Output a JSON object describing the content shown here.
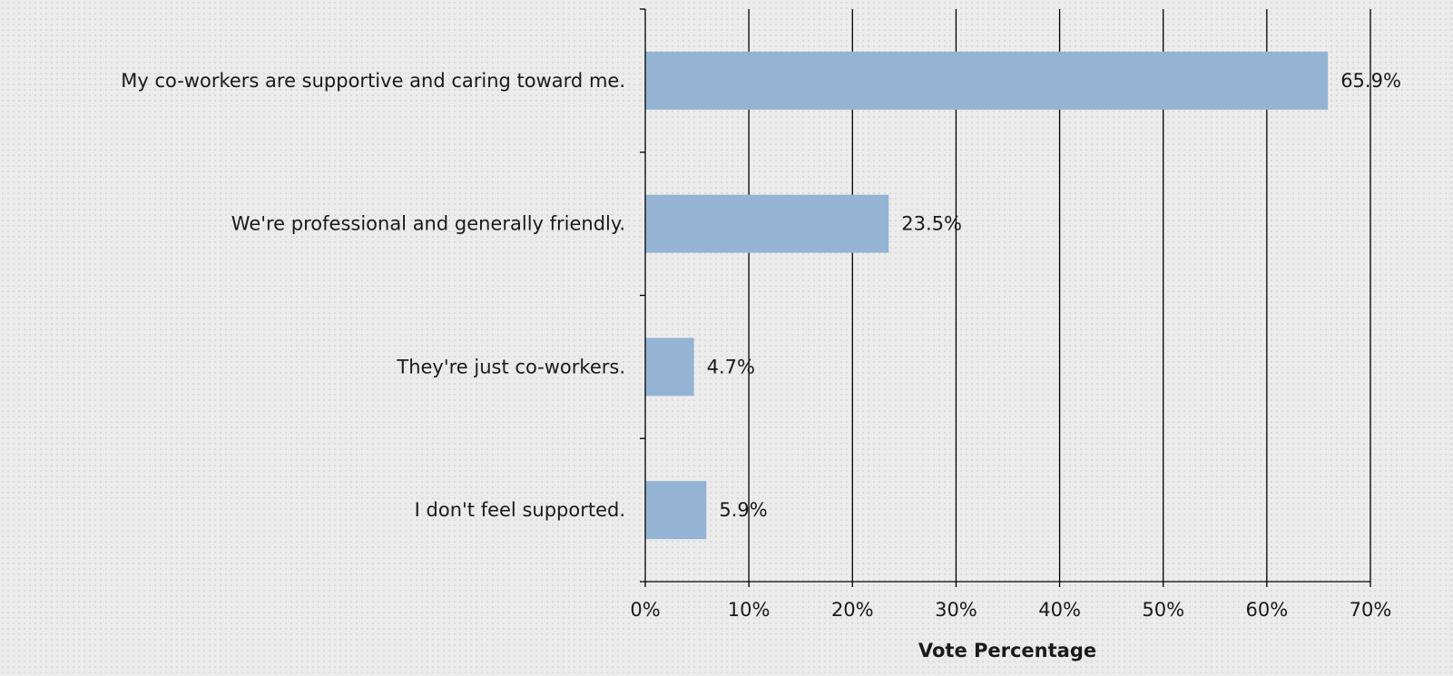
{
  "chart_data": {
    "type": "bar",
    "orientation": "horizontal",
    "categories": [
      "My co-workers are supportive and caring toward me.",
      "We're professional and generally friendly.",
      "They're just co-workers.",
      "I don't feel supported."
    ],
    "values": [
      65.9,
      23.5,
      4.7,
      5.9
    ],
    "value_labels": [
      "65.9%",
      "23.5%",
      "4.7%",
      "5.9%"
    ],
    "xlabel": "Vote Percentage",
    "ylabel": "",
    "title": "",
    "xlim": [
      0,
      70
    ],
    "xticks": [
      0,
      10,
      20,
      30,
      40,
      50,
      60,
      70
    ],
    "xtick_labels": [
      "0%",
      "10%",
      "20%",
      "30%",
      "40%",
      "50%",
      "60%",
      "70%"
    ],
    "grid": "vertical",
    "legend": "none",
    "colors": {
      "bar": "#95b4d3",
      "gridline": "#000000",
      "background": "#ececec"
    }
  }
}
